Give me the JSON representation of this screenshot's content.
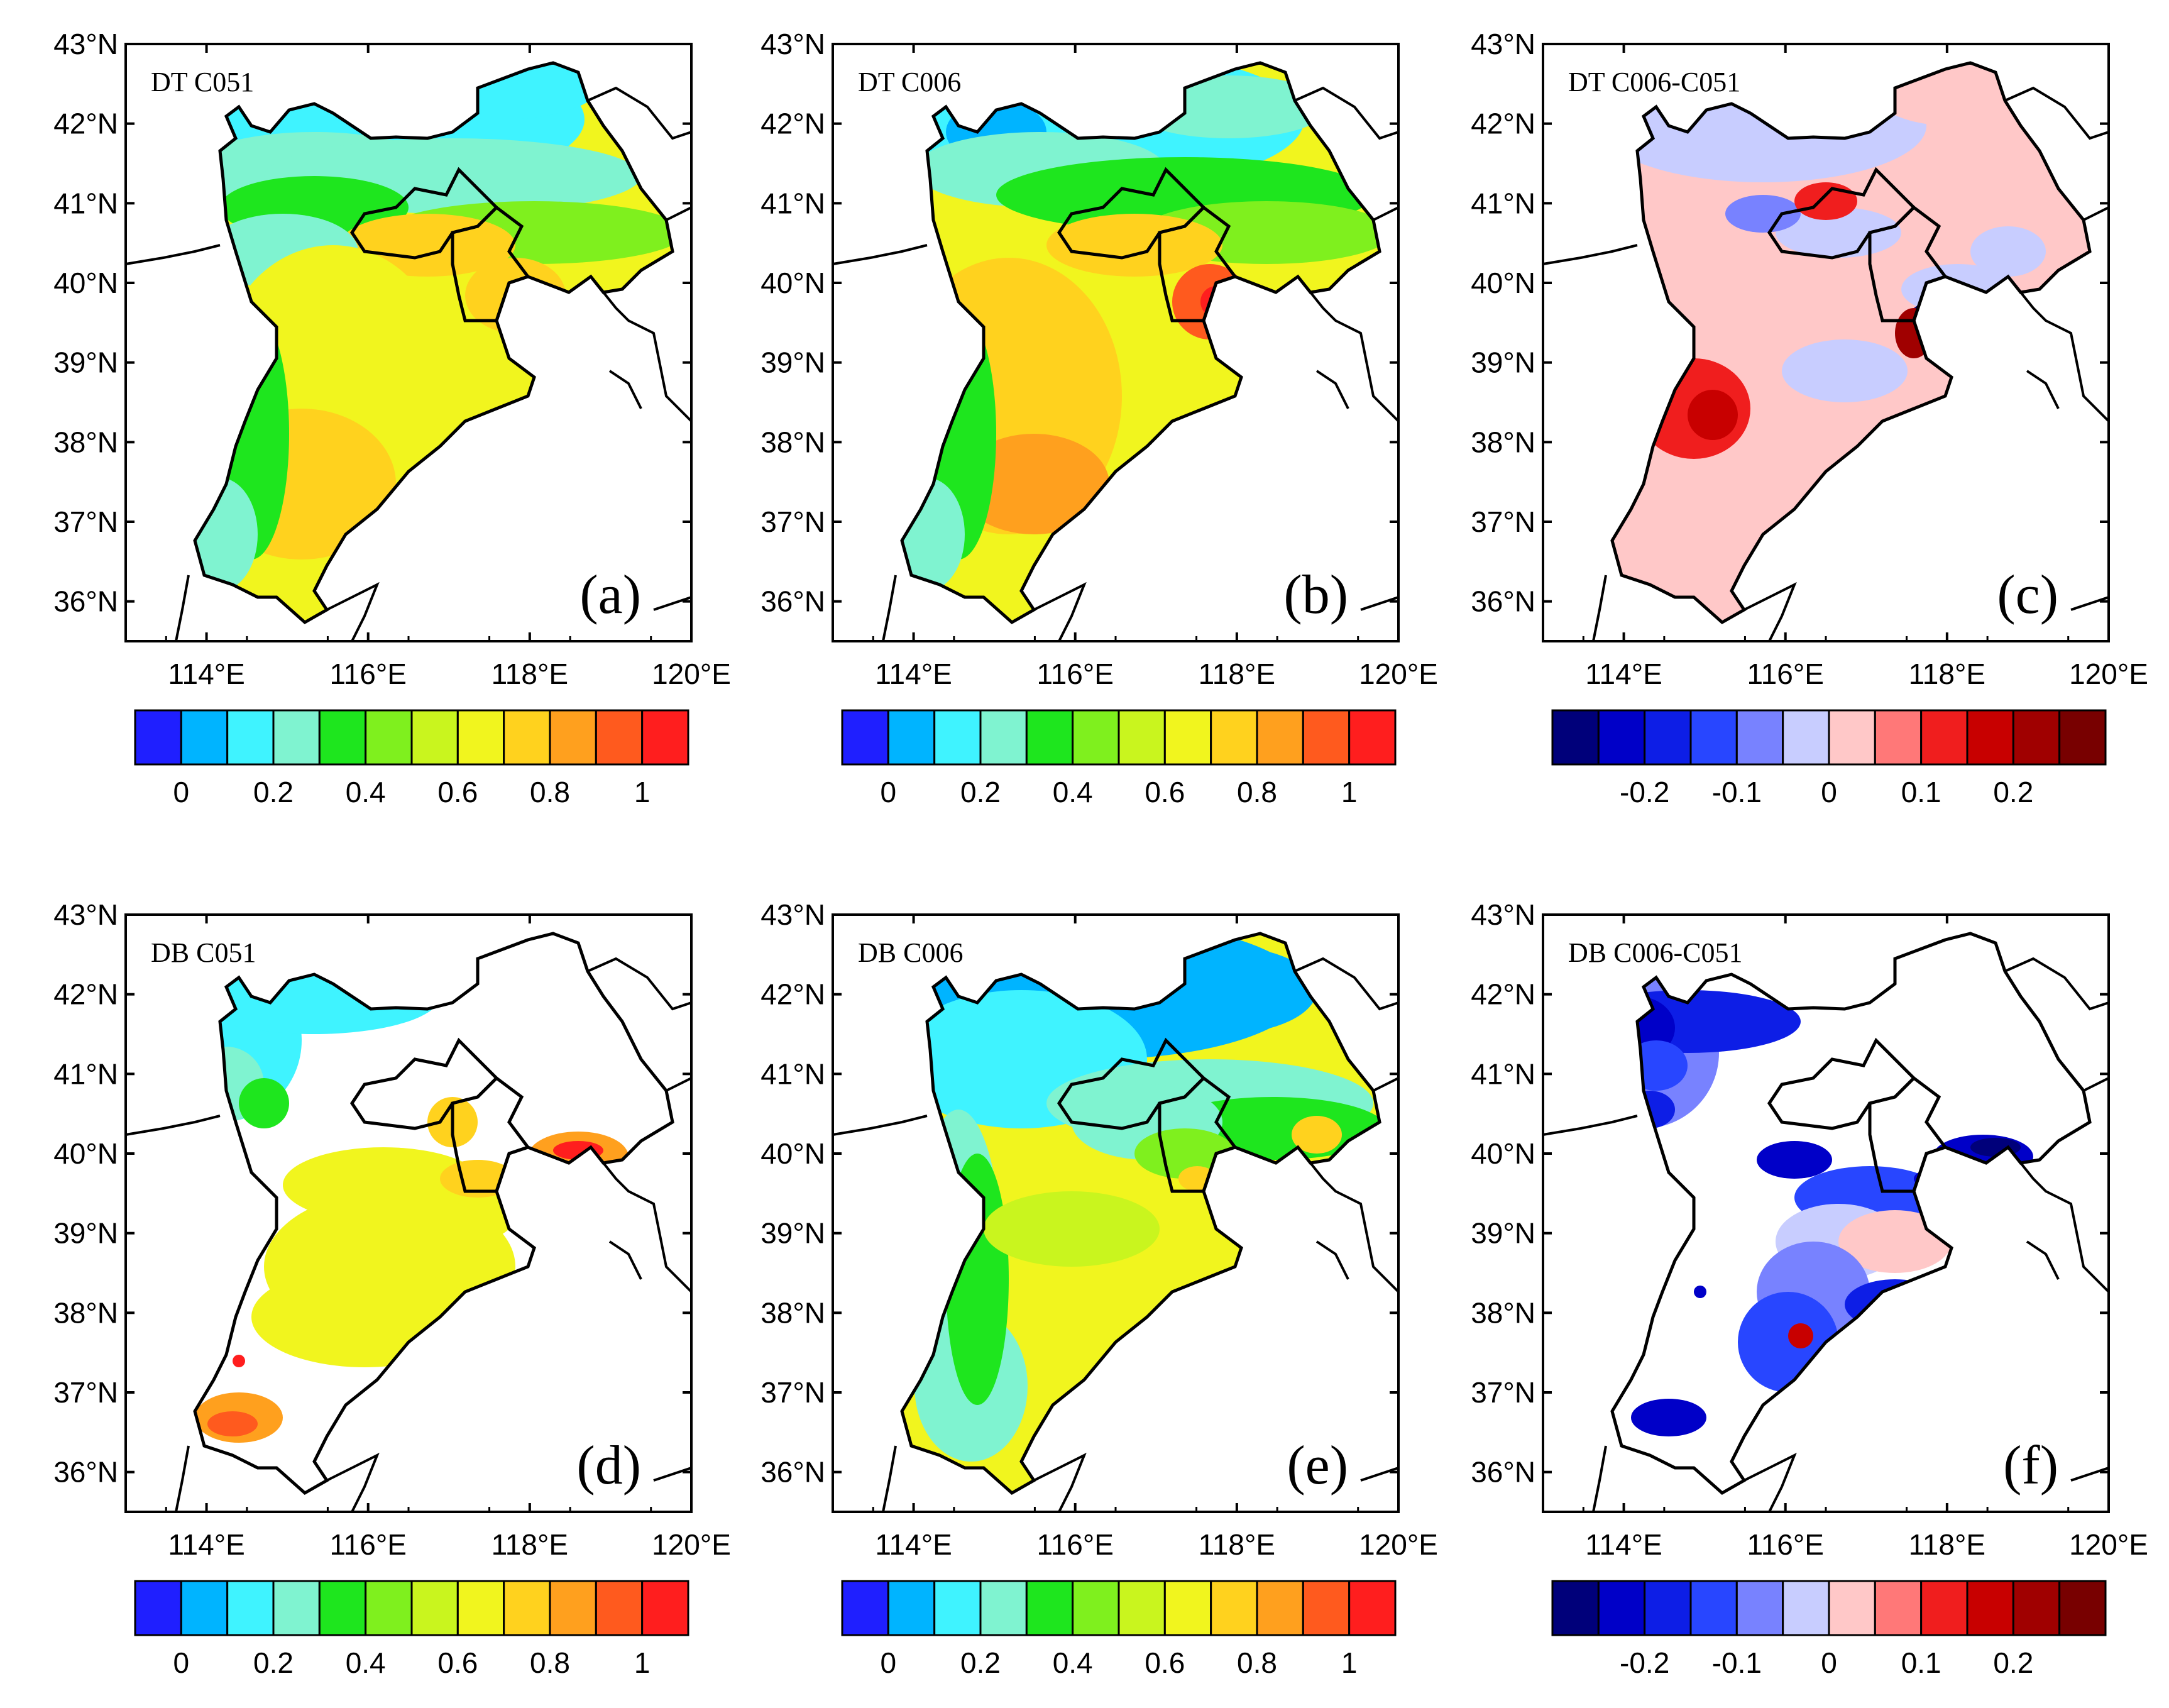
{
  "figure": {
    "panels": [
      {
        "id": "a",
        "title": "DT C051",
        "letter": "(a)",
        "palette": "seq"
      },
      {
        "id": "b",
        "title": "DT C006",
        "letter": "(b)",
        "palette": "seq"
      },
      {
        "id": "c",
        "title": "DT C006-C051",
        "letter": "(c)",
        "palette": "div"
      },
      {
        "id": "d",
        "title": "DB C051",
        "letter": "(d)",
        "palette": "seq"
      },
      {
        "id": "e",
        "title": "DB C006",
        "letter": "(e)",
        "palette": "seq"
      },
      {
        "id": "f",
        "title": "DB C006-C051",
        "letter": "(f)",
        "palette": "div"
      }
    ],
    "lat_ticks": [
      "43°N",
      "42°N",
      "41°N",
      "40°N",
      "39°N",
      "38°N",
      "37°N",
      "36°N"
    ],
    "lon_ticks": [
      "114°E",
      "116°E",
      "118°E",
      "120°E"
    ],
    "colorbars": {
      "seq": {
        "colors": [
          "#1f1fff",
          "#00b4ff",
          "#3ff3ff",
          "#7ff3d0",
          "#1ee61e",
          "#7ff01e",
          "#c9f51e",
          "#f1f51e",
          "#ffd21e",
          "#ffa01e",
          "#ff5a1e",
          "#ff1e1e"
        ],
        "labels": [
          "0",
          "0.2",
          "0.4",
          "0.6",
          "0.8",
          "1"
        ]
      },
      "div": {
        "colors": [
          "#00007a",
          "#0000c8",
          "#0d1ee6",
          "#2846ff",
          "#7882ff",
          "#c8cdff",
          "#ffc8c8",
          "#ff7878",
          "#f01e1e",
          "#c80000",
          "#a00000",
          "#780000"
        ],
        "labels": [
          "-0.2",
          "-0.1",
          "0",
          "0.1",
          "0.2"
        ]
      }
    }
  },
  "chart_data": [
    {
      "type": "heatmap",
      "panel": "a",
      "title": "DT C051",
      "variable": "DT C051",
      "lon_range": [
        113,
        120
      ],
      "lat_range": [
        35.5,
        43
      ],
      "colorbar_ticks": [
        0,
        0.2,
        0.4,
        0.6,
        0.8,
        1
      ],
      "summary": "Northern region (41–42.5°N) ~0.1–0.2; Beijing/Tianjin ~0.6–0.8; southern plain (36.5–39°N) ~0.6–0.8"
    },
    {
      "type": "heatmap",
      "panel": "b",
      "title": "DT C006",
      "variable": "DT C006",
      "lon_range": [
        113,
        120
      ],
      "lat_range": [
        35.5,
        43
      ],
      "colorbar_ticks": [
        0,
        0.2,
        0.4,
        0.6,
        0.8,
        1
      ],
      "summary": "Northern region ~0.1–0.2; Tianjin hotspot ~1; southern plain ~0.6–0.9"
    },
    {
      "type": "heatmap",
      "panel": "c",
      "title": "DT C006-C051",
      "variable": "difference",
      "lon_range": [
        113,
        120
      ],
      "lat_range": [
        35.5,
        43
      ],
      "colorbar_ticks": [
        -0.2,
        -0.1,
        0,
        0.1,
        0.2
      ],
      "summary": "Mostly 0 to 0.05; north slightly negative; coastal Tianjin mixed ±0.2"
    },
    {
      "type": "heatmap",
      "panel": "d",
      "title": "DB C051",
      "variable": "DB C051",
      "lon_range": [
        113,
        120
      ],
      "lat_range": [
        35.5,
        43
      ],
      "colorbar_ticks": [
        0,
        0.2,
        0.4,
        0.6,
        0.8,
        1
      ],
      "summary": "Sparse coverage; north ~0.2; southeast plain ~0.6–0.8"
    },
    {
      "type": "heatmap",
      "panel": "e",
      "title": "DB C006",
      "variable": "DB C006",
      "lon_range": [
        113,
        120
      ],
      "lat_range": [
        35.5,
        43
      ],
      "colorbar_ticks": [
        0,
        0.2,
        0.4,
        0.6,
        0.8,
        1
      ],
      "summary": "North ~0.1–0.2; Beijing ~0.4; southern plain ~0.6"
    },
    {
      "type": "heatmap",
      "panel": "f",
      "title": "DB C006-C051",
      "variable": "difference",
      "lon_range": [
        113,
        120
      ],
      "lat_range": [
        35.5,
        43
      ],
      "colorbar_ticks": [
        -0.2,
        -0.1,
        0,
        0.1,
        0.2
      ],
      "summary": "Predominantly negative (-0.1 to -0.2) where both defined; scattered positive spots"
    }
  ]
}
